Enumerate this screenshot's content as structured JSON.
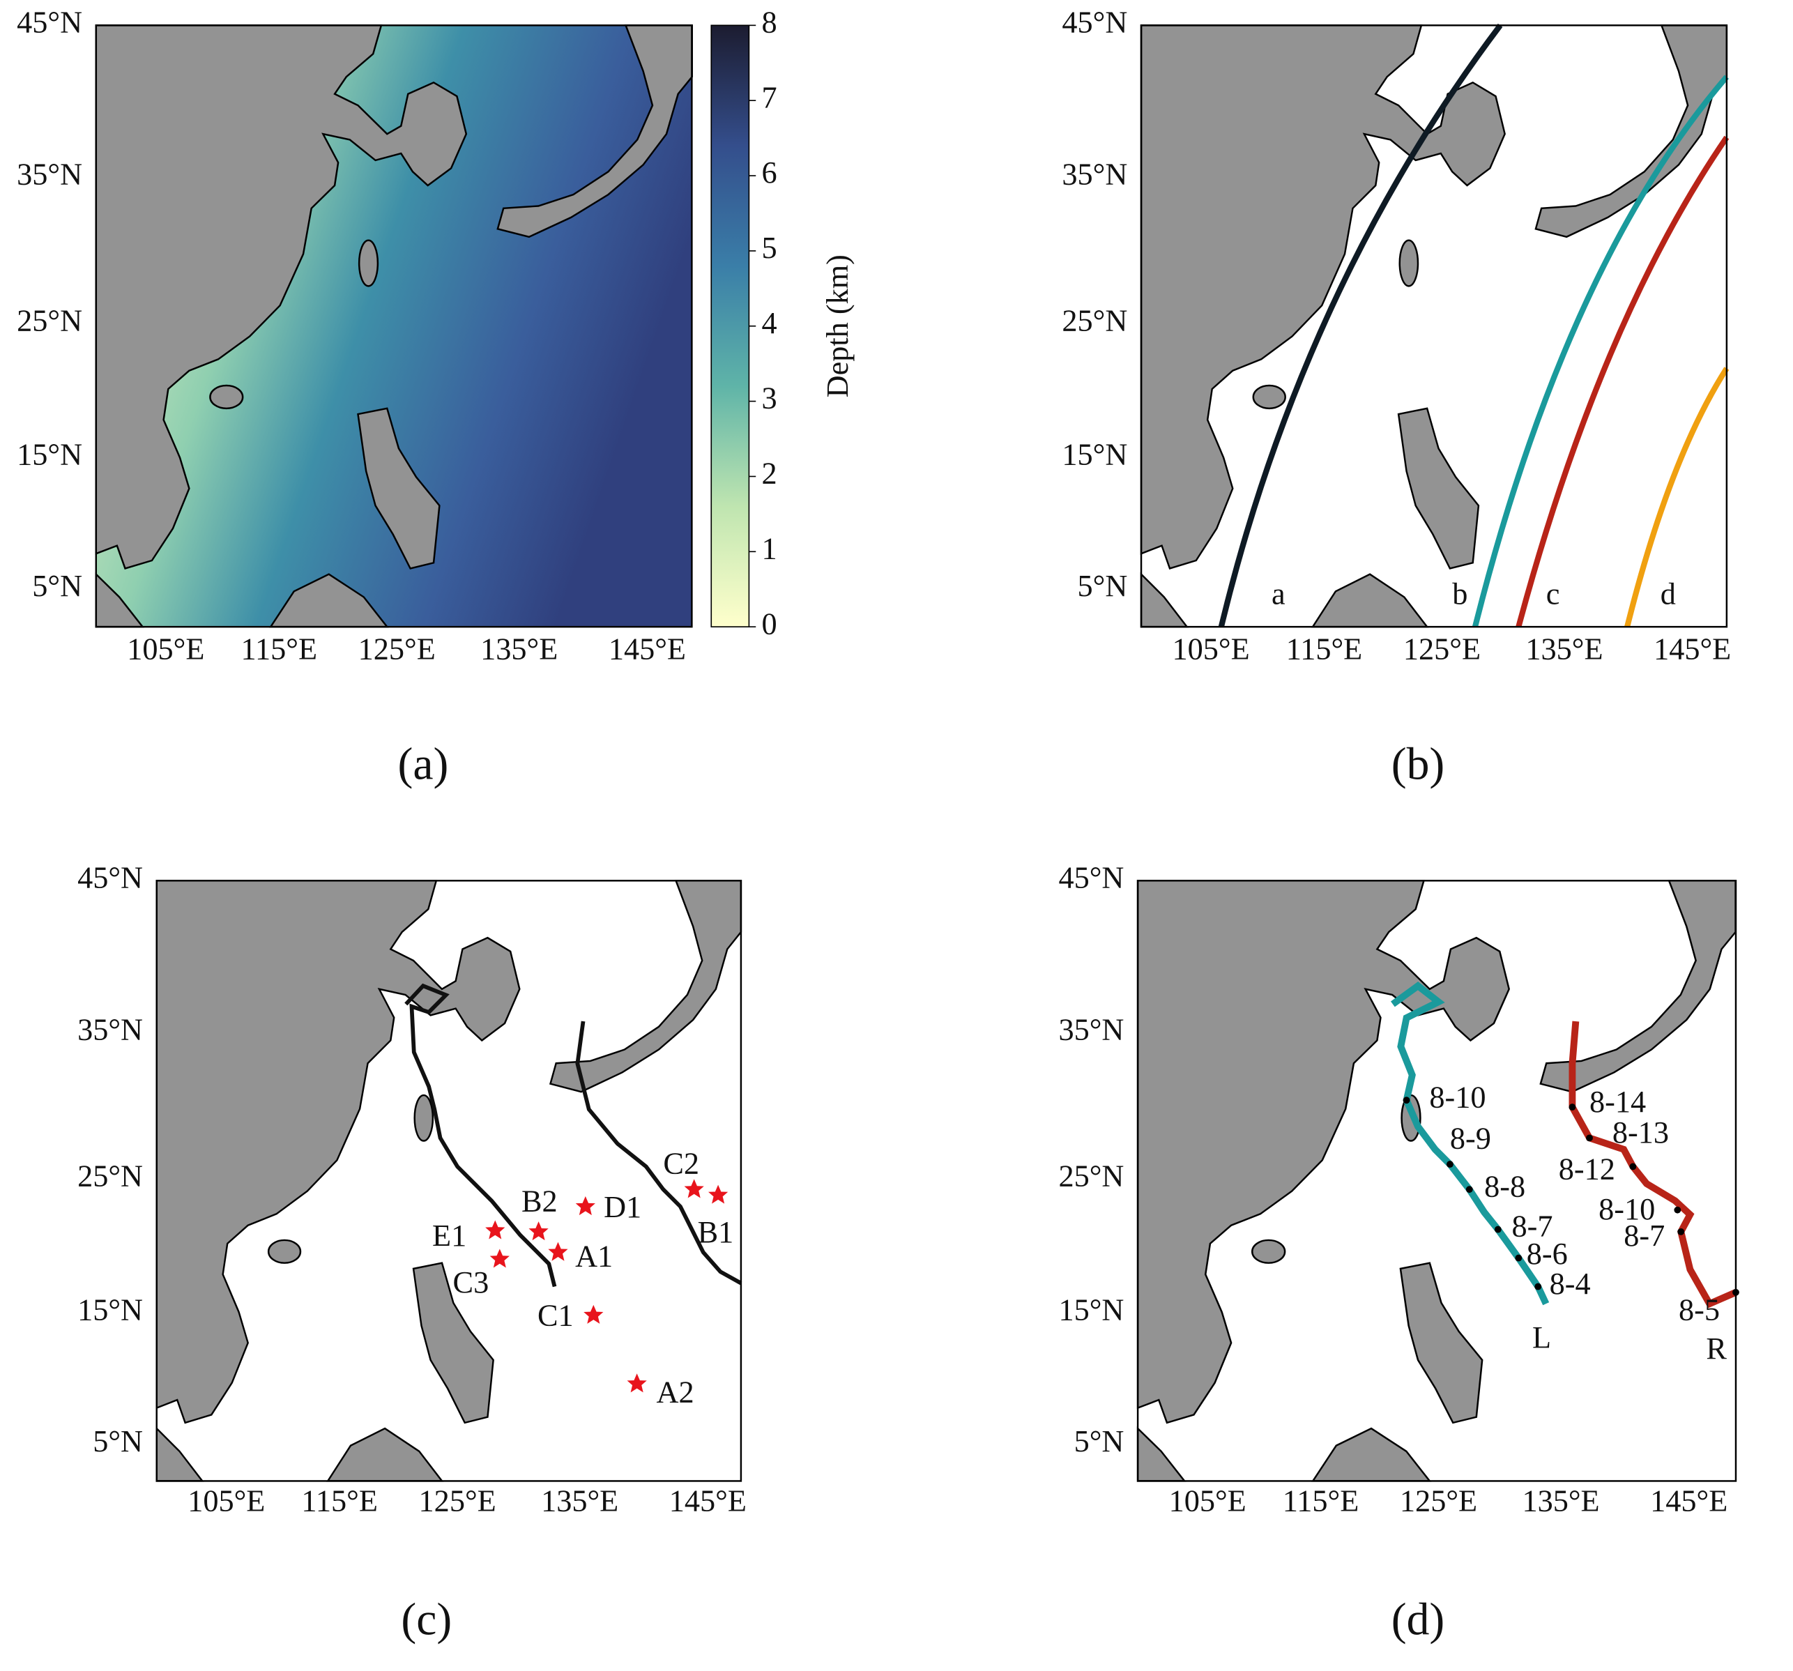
{
  "panels": [
    {
      "caption": "(a)",
      "lat_labels": [
        "45°N",
        "35°N",
        "25°N",
        "15°N",
        "5°N"
      ],
      "lon_labels": [
        "105°E",
        "115°E",
        "125°E",
        "135°E",
        "145°E"
      ],
      "colorbar": {
        "label": "Depth (km)",
        "ticks": [
          0,
          1,
          2,
          3,
          4,
          5,
          6,
          7,
          8
        ]
      }
    },
    {
      "caption": "(b)",
      "lat_labels": [
        "45°N",
        "35°N",
        "25°N",
        "15°N",
        "5°N"
      ],
      "lon_labels": [
        "105°E",
        "115°E",
        "125°E",
        "135°E",
        "145°E"
      ],
      "line_labels": [
        "a",
        "b",
        "c",
        "d"
      ]
    },
    {
      "caption": "(c)",
      "lat_labels": [
        "45°N",
        "35°N",
        "25°N",
        "15°N",
        "5°N"
      ],
      "lon_labels": [
        "105°E",
        "115°E",
        "125°E",
        "135°E",
        "145°E"
      ],
      "stations": [
        "C2",
        "B1",
        "D1",
        "B2",
        "E1",
        "A1",
        "C3",
        "C1",
        "A2"
      ]
    },
    {
      "caption": "(d)",
      "lat_labels": [
        "45°N",
        "35°N",
        "25°N",
        "15°N",
        "5°N"
      ],
      "lon_labels": [
        "105°E",
        "115°E",
        "125°E",
        "135°E",
        "145°E"
      ],
      "tracks": [
        {
          "name": "L",
          "dates": [
            "8-10",
            "8-9",
            "8-8",
            "8-7",
            "8-6",
            "8-4"
          ]
        },
        {
          "name": "R",
          "dates": [
            "8-14",
            "8-13",
            "8-12",
            "8-10",
            "8-7",
            "8-5"
          ]
        }
      ]
    }
  ]
}
